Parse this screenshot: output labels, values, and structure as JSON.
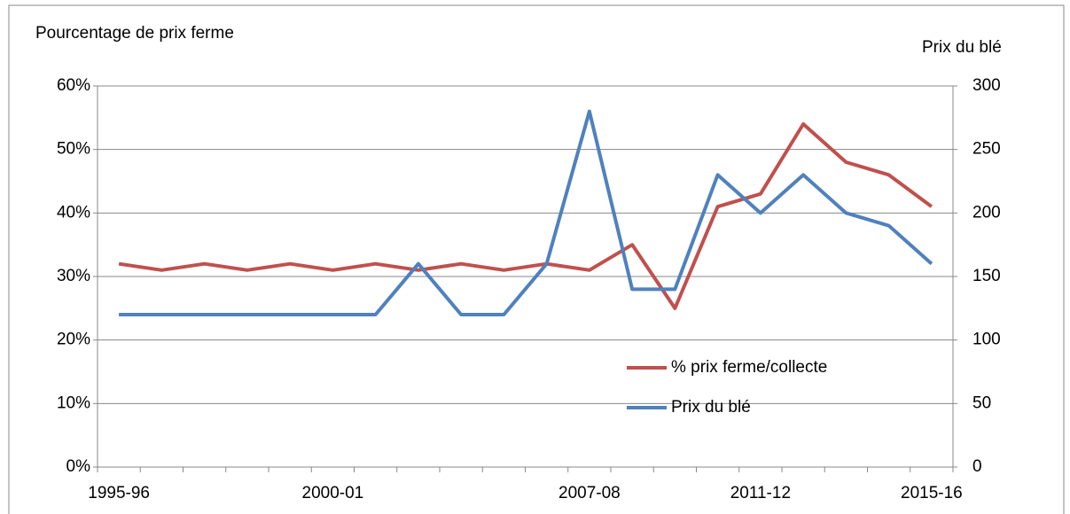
{
  "chart_data": {
    "type": "line",
    "y_label": "Pourcentage de prix ferme",
    "y2_label": "Prix du blé",
    "categories": [
      "1995-96",
      null,
      null,
      null,
      null,
      "2000-01",
      null,
      null,
      null,
      null,
      null,
      "2007-08",
      null,
      null,
      null,
      "2011-12",
      null,
      null,
      null,
      "2015-16"
    ],
    "series": [
      {
        "name": "% prix ferme/collecte",
        "color": "#c0504d",
        "axis": "y",
        "values": [
          32,
          31,
          32,
          31,
          32,
          31,
          32,
          31,
          32,
          31,
          32,
          31,
          35,
          25,
          41,
          43,
          54,
          48,
          46,
          41
        ]
      },
      {
        "name": "Prix du blé",
        "color": "#4f81bd",
        "axis": "y2",
        "values": [
          120,
          120,
          120,
          120,
          120,
          120,
          120,
          160,
          120,
          120,
          160,
          280,
          140,
          140,
          230,
          200,
          230,
          200,
          190,
          160
        ]
      }
    ],
    "ylim": [
      0,
      60
    ],
    "yticks": [
      {
        "value": 0,
        "label": "0%"
      },
      {
        "value": 10,
        "label": "10%"
      },
      {
        "value": 20,
        "label": "20%"
      },
      {
        "value": 30,
        "label": "30%"
      },
      {
        "value": 40,
        "label": "40%"
      },
      {
        "value": 50,
        "label": "50%"
      },
      {
        "value": 60,
        "label": "60%"
      }
    ],
    "y2lim": [
      0,
      300
    ],
    "y2ticks": [
      0,
      50,
      100,
      150,
      200,
      250,
      300
    ],
    "grid": true,
    "legend": "lower-right"
  }
}
